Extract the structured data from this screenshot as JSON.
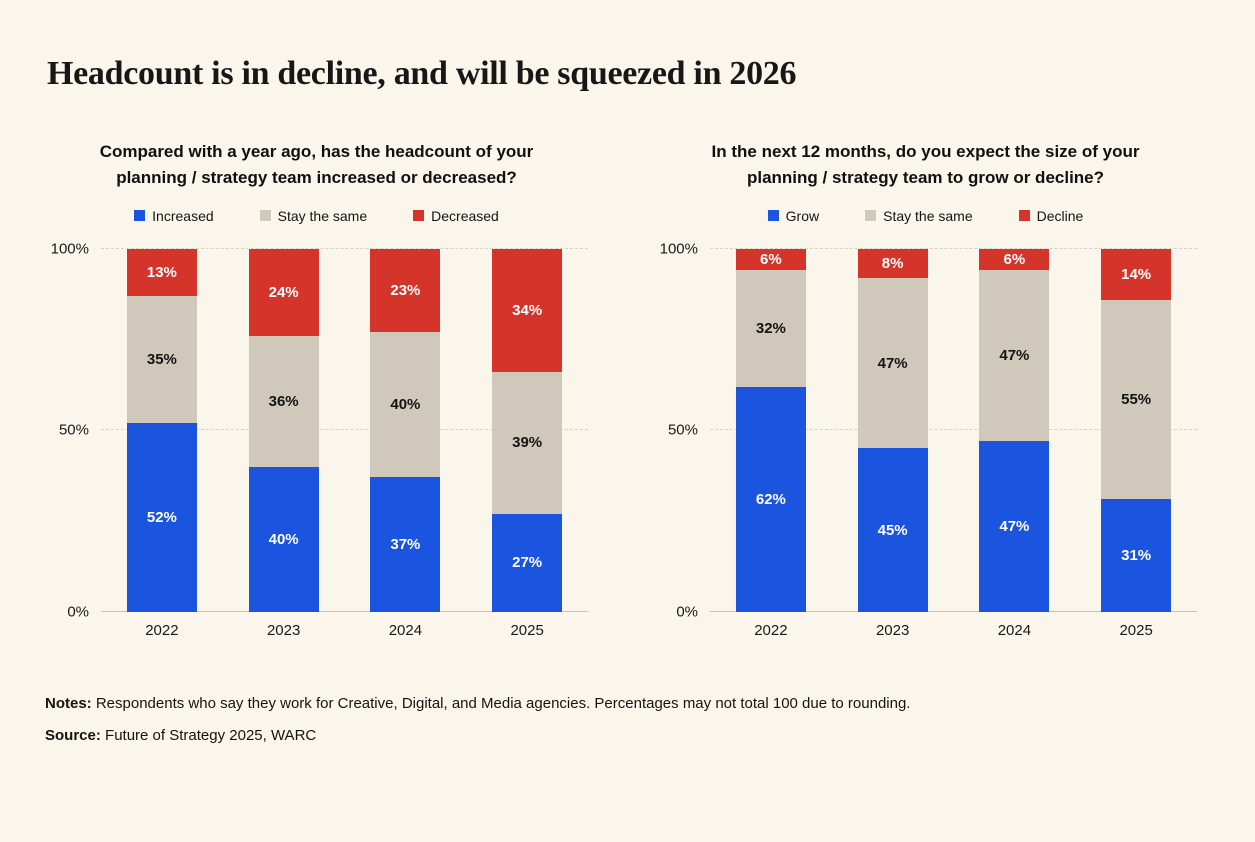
{
  "page": {
    "title": "Headcount is in decline, and will be squeezed in 2026",
    "notes_label": "Notes:",
    "notes_text": " Respondents who say they work for Creative, Digital, and Media agencies. Percentages may not total 100 due to rounding.",
    "source_label": "Source:",
    "source_text": " Future of Strategy 2025, WARC"
  },
  "colors": {
    "blue": "#1A54DF",
    "beige": "#CFC8BB",
    "red": "#D5342B",
    "background": "#FAF6EC",
    "grid": "#D8D2C4",
    "text": "#141414"
  },
  "chart_data": [
    {
      "type": "bar",
      "stacked": true,
      "title": "Compared with a year ago, has the headcount of your planning / strategy team increased or decreased?",
      "categories": [
        "2022",
        "2023",
        "2024",
        "2025"
      ],
      "series": [
        {
          "name": "Increased",
          "color_key": "blue",
          "label_color": "#FFFFFF",
          "values": [
            52,
            40,
            37,
            27
          ]
        },
        {
          "name": "Stay the same",
          "color_key": "beige",
          "label_color": "#141414",
          "values": [
            35,
            36,
            40,
            39
          ]
        },
        {
          "name": "Decreased",
          "color_key": "red",
          "label_color": "#FFFFFF",
          "values": [
            13,
            24,
            23,
            34
          ]
        }
      ],
      "ylim": [
        0,
        100
      ],
      "yticks": [
        0,
        50,
        100
      ],
      "ytick_labels": [
        "0%",
        "50%",
        "100%"
      ],
      "unit": "%",
      "grid": "dashed",
      "legend_position": "top"
    },
    {
      "type": "bar",
      "stacked": true,
      "title": "In the next 12 months, do you expect the size of your planning / strategy team to grow or decline?",
      "categories": [
        "2022",
        "2023",
        "2024",
        "2025"
      ],
      "series": [
        {
          "name": "Grow",
          "color_key": "blue",
          "label_color": "#FFFFFF",
          "values": [
            62,
            45,
            47,
            31
          ]
        },
        {
          "name": "Stay the same",
          "color_key": "beige",
          "label_color": "#141414",
          "values": [
            32,
            47,
            47,
            55
          ]
        },
        {
          "name": "Decline",
          "color_key": "red",
          "label_color": "#FFFFFF",
          "values": [
            6,
            8,
            6,
            14
          ]
        }
      ],
      "ylim": [
        0,
        100
      ],
      "yticks": [
        0,
        50,
        100
      ],
      "ytick_labels": [
        "0%",
        "50%",
        "100%"
      ],
      "unit": "%",
      "grid": "dashed",
      "legend_position": "top"
    }
  ]
}
